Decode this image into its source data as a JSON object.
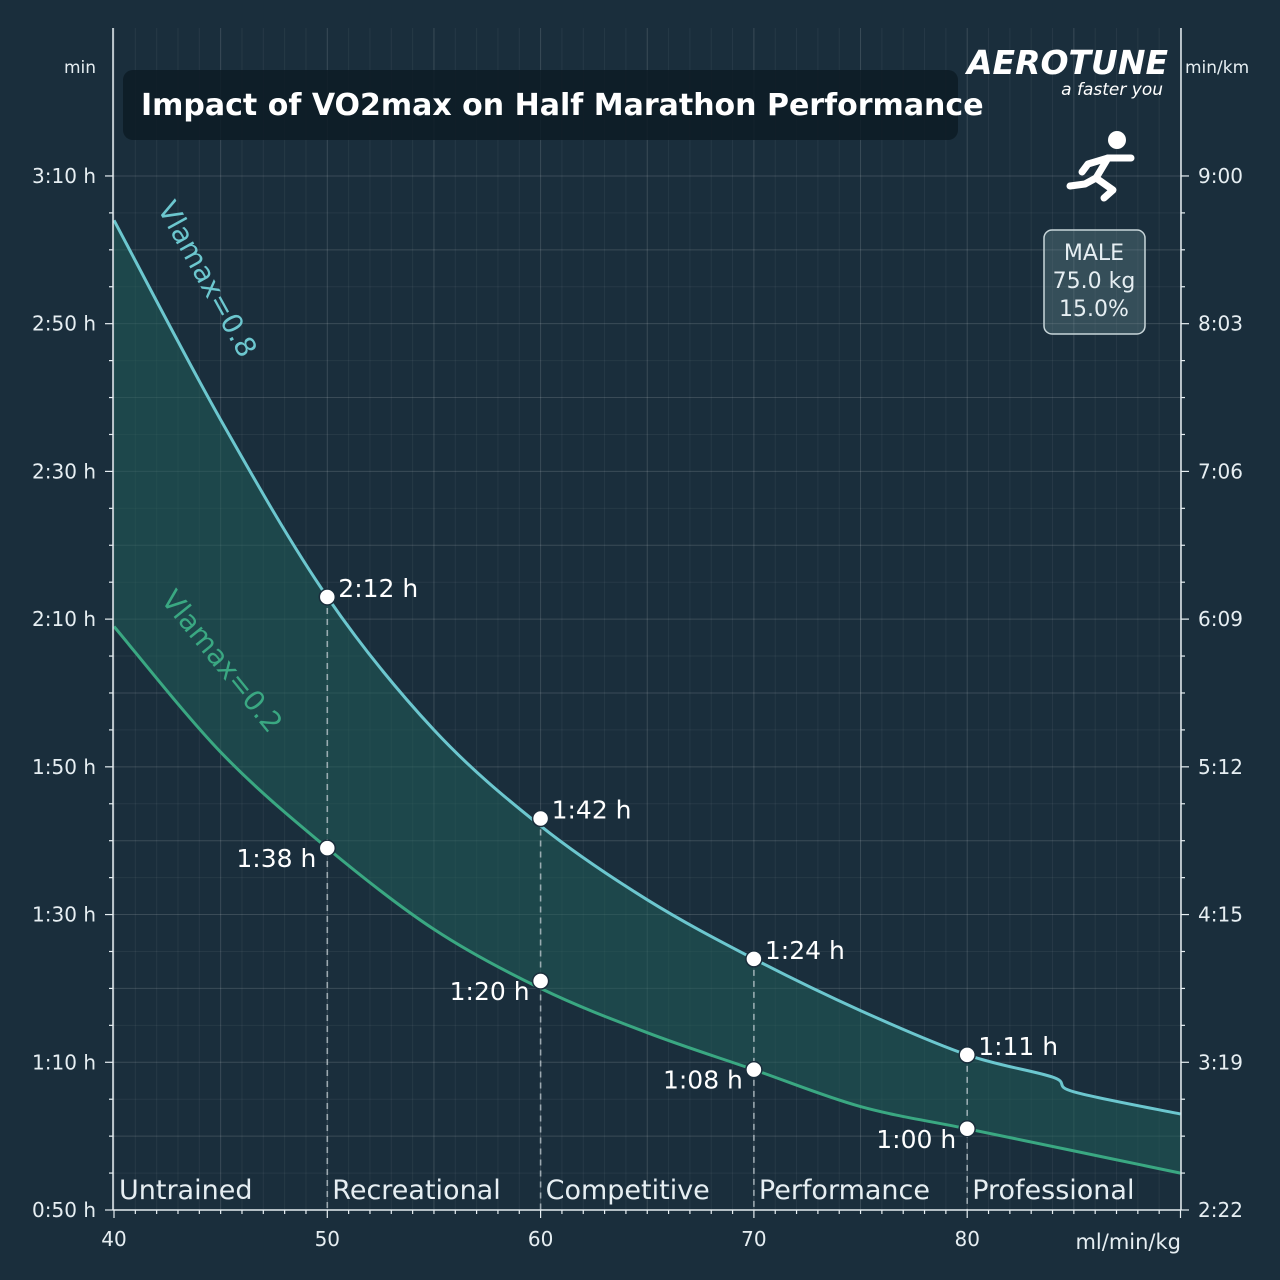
{
  "brand": {
    "name": "AEROTUNE",
    "slogan": "a faster you"
  },
  "profile": {
    "sex": "MALE",
    "weight": "75.0 kg",
    "bodyfat": "15.0%"
  },
  "colors": {
    "background": "#1a2e3c",
    "vla08": "#6cc7cf",
    "vla02": "#3aa882",
    "band": "#215c58",
    "points": "#ffffff"
  },
  "chart_data": {
    "type": "line",
    "title": "Impact of VO2max on Half Marathon Performance",
    "xlabel": "ml/min/kg",
    "ylabel_left": "min",
    "ylabel_right": "min/km",
    "xlim": [
      40,
      90
    ],
    "ylim_minutes": [
      50,
      190
    ],
    "x_ticks": [
      "40",
      "50",
      "60",
      "70",
      "80"
    ],
    "y_ticks_left": [
      "0:50 h",
      "1:10 h",
      "1:30 h",
      "1:50 h",
      "2:10 h",
      "2:30 h",
      "2:50 h",
      "3:10 h"
    ],
    "y_ticks_right": [
      "2:22",
      "3:19",
      "4:15",
      "5:12",
      "6:09",
      "7:06",
      "8:03",
      "9:00"
    ],
    "grid": true,
    "series": [
      {
        "name": "Vlamax=0.8",
        "x": [
          40,
          45,
          50,
          55,
          60,
          65,
          70,
          75,
          80,
          84,
          85,
          90
        ],
        "y_minutes": [
          184,
          157,
          133,
          115,
          102,
          92,
          84,
          77,
          71,
          68,
          66,
          63
        ]
      },
      {
        "name": "Vlamax=0.2",
        "x": [
          40,
          45,
          50,
          55,
          60,
          65,
          70,
          75,
          80,
          85,
          90
        ],
        "y_minutes": [
          129,
          112,
          99,
          88,
          80,
          74,
          69,
          64,
          61,
          58,
          55
        ]
      }
    ],
    "points": [
      {
        "x": 50,
        "y_minutes": 133,
        "label": "2:12 h"
      },
      {
        "x": 60,
        "y_minutes": 103,
        "label": "1:42 h"
      },
      {
        "x": 70,
        "y_minutes": 84,
        "label": "1:24 h"
      },
      {
        "x": 80,
        "y_minutes": 71,
        "label": "1:11 h"
      },
      {
        "x": 50,
        "y_minutes": 99,
        "label": "1:38 h"
      },
      {
        "x": 60,
        "y_minutes": 81,
        "label": "1:20 h"
      },
      {
        "x": 70,
        "y_minutes": 69,
        "label": "1:08 h"
      },
      {
        "x": 80,
        "y_minutes": 61,
        "label": "1:00 h"
      }
    ],
    "zones": [
      {
        "label": "Untrained",
        "x_start": 40
      },
      {
        "label": "Recreational",
        "x_start": 50
      },
      {
        "label": "Competitive",
        "x_start": 60
      },
      {
        "label": "Performance",
        "x_start": 70
      },
      {
        "label": "Professional",
        "x_start": 80
      }
    ]
  }
}
